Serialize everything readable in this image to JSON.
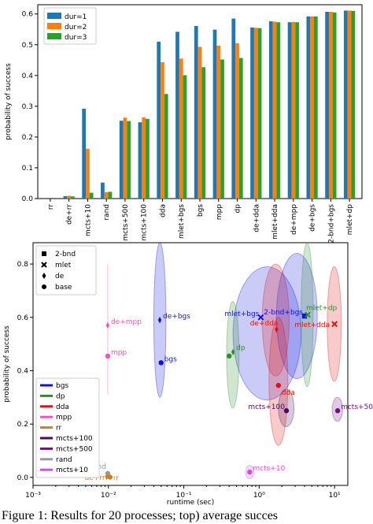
{
  "chart_data": [
    {
      "type": "bar",
      "ylabel": "probability of success",
      "ylim": [
        0,
        0.63
      ],
      "yticks": [
        "0.0",
        "0.1",
        "0.2",
        "0.3",
        "0.4",
        "0.5",
        "0.6"
      ],
      "categories": [
        "rr",
        "de+rr",
        "mcts+10",
        "rand",
        "mcts+500",
        "mcts+100",
        "dda",
        "mlet+bgs",
        "bgs",
        "mpp",
        "dp",
        "de+dda",
        "mlet+dda",
        "de+mpp",
        "de+bgs",
        "2-bnd+bgs",
        "mlet+dp"
      ],
      "series": [
        {
          "name": "dur=1",
          "color": "#1f77b4",
          "values": [
            0.0,
            0.008,
            0.292,
            0.052,
            0.253,
            0.248,
            0.51,
            0.542,
            0.561,
            0.549,
            0.585,
            0.556,
            0.576,
            0.573,
            0.592,
            0.607,
            0.611
          ]
        },
        {
          "name": "dur=2",
          "color": "#ff7f0e",
          "values": [
            0.0,
            0.009,
            0.162,
            0.021,
            0.263,
            0.264,
            0.443,
            0.455,
            0.493,
            0.497,
            0.505,
            0.555,
            0.575,
            0.574,
            0.592,
            0.607,
            0.611
          ]
        },
        {
          "name": "dur=3",
          "color": "#2ca02c",
          "values": [
            0.0,
            0.007,
            0.019,
            0.022,
            0.252,
            0.259,
            0.34,
            0.401,
            0.427,
            0.452,
            0.457,
            0.554,
            0.573,
            0.573,
            0.592,
            0.605,
            0.61
          ]
        }
      ],
      "legend": "top-left"
    },
    {
      "type": "scatter",
      "xlabel": "runtime (sec)",
      "ylabel": "probability of success",
      "xscale": "log",
      "xlim": [
        0.001,
        15
      ],
      "ylim": [
        -0.03,
        0.88
      ],
      "xticks": [
        0.001,
        0.01,
        0.1,
        1,
        10
      ],
      "xtick_labels": [
        "10⁻³",
        "10⁻²",
        "10⁻¹",
        "10⁰",
        "10¹"
      ],
      "yticks": [
        "0.0",
        "0.2",
        "0.4",
        "0.6",
        "0.8"
      ],
      "ytick_values": [
        0,
        0.2,
        0.4,
        0.6,
        0.8
      ],
      "marker_legend": [
        {
          "marker": "square",
          "label": "2-bnd"
        },
        {
          "marker": "x",
          "label": "mlet"
        },
        {
          "marker": "diamond",
          "label": "de"
        },
        {
          "marker": "circle",
          "label": "base"
        }
      ],
      "color_legend": [
        {
          "label": "bgs",
          "color": "#1010e0"
        },
        {
          "label": "dp",
          "color": "#2e8b2e"
        },
        {
          "label": "dda",
          "color": "#e01010"
        },
        {
          "label": "mpp",
          "color": "#ff4fb8"
        },
        {
          "label": "rr",
          "color": "#c87f2a"
        },
        {
          "label": "mcts+100",
          "color": "#4b0a5a"
        },
        {
          "label": "mcts+500",
          "color": "#70107a"
        },
        {
          "label": "rand",
          "color": "#999999"
        },
        {
          "label": "mcts+10",
          "color": "#d050e0"
        }
      ],
      "points": [
        {
          "label": "de+bgs",
          "x": 0.048,
          "y": 0.59,
          "color": "#1010e0",
          "marker": "diamond",
          "ex": [
            0.04,
            0.058
          ],
          "ey": [
            0.3,
            0.88
          ]
        },
        {
          "label": "bgs",
          "x": 0.05,
          "y": 0.43,
          "color": "#1010e0",
          "marker": "circle"
        },
        {
          "label": "de+mpp",
          "x": 0.0098,
          "y": 0.57,
          "color": "#ff4fb8",
          "marker": "diamond",
          "ey": [
            0.31,
            0.8
          ]
        },
        {
          "label": "mpp",
          "x": 0.0098,
          "y": 0.455,
          "color": "#ff4fb8",
          "marker": "circle"
        },
        {
          "label": "mlet+bgs",
          "x": 1.05,
          "y": 0.6,
          "color": "#1010e0",
          "marker": "x",
          "ex": [
            0.45,
            3.6
          ],
          "ey": [
            0.29,
            0.79
          ]
        },
        {
          "label": "2-bnd+bgs",
          "x": 4.0,
          "y": 0.605,
          "color": "#1010e0",
          "marker": "square",
          "ex": [
            1.7,
            5.9
          ],
          "ey": [
            0.37,
            0.84
          ]
        },
        {
          "label": "mlet+dp",
          "x": 4.4,
          "y": 0.61,
          "color": "#2e8b2e",
          "marker": "x",
          "ex": [
            3.6,
            5.2
          ],
          "ey": [
            0.34,
            0.88
          ]
        },
        {
          "label": "de+dda",
          "x": 1.7,
          "y": 0.555,
          "color": "#e01010",
          "marker": "diamond",
          "ex": [
            1.1,
            2.5
          ],
          "ey": [
            0.38,
            0.8
          ]
        },
        {
          "label": "mlet+dda",
          "x": 10.0,
          "y": 0.575,
          "color": "#e01010",
          "marker": "x",
          "ex": [
            8.0,
            12.3
          ],
          "ey": [
            0.36,
            0.79
          ]
        },
        {
          "label": "dp",
          "x": 0.45,
          "y": 0.47,
          "color": "#2e8b2e",
          "marker": "diamond",
          "ex": [
            0.37,
            0.54
          ],
          "ey": [
            0.26,
            0.66
          ]
        },
        {
          "label": "dp",
          "x": 0.4,
          "y": 0.455,
          "color": "#2e8b2e",
          "marker": "circle"
        },
        {
          "label": "dda",
          "x": 1.8,
          "y": 0.345,
          "color": "#e01010",
          "marker": "circle",
          "ex": [
            1.35,
            2.4
          ],
          "ey": [
            0.12,
            0.6
          ]
        },
        {
          "label": "mcts+100",
          "x": 2.3,
          "y": 0.25,
          "color": "#4b0a5a",
          "marker": "circle",
          "ex": [
            1.8,
            2.9
          ],
          "ey": [
            0.19,
            0.33
          ]
        },
        {
          "label": "mcts+500",
          "x": 11.0,
          "y": 0.25,
          "color": "#70107a",
          "marker": "circle",
          "ex": [
            9.3,
            12.8
          ],
          "ey": [
            0.21,
            0.3
          ]
        },
        {
          "label": "mcts+10",
          "x": 0.75,
          "y": 0.02,
          "color": "#d050e0",
          "marker": "circle",
          "ex": [
            0.66,
            0.85
          ],
          "ey": [
            -0.005,
            0.045
          ]
        },
        {
          "label": "rand",
          "x": 0.0098,
          "y": 0.015,
          "color": "#999999",
          "marker": "circle"
        },
        {
          "label": "de+rr",
          "x": 0.0095,
          "y": 0.002,
          "color": "#c87f2a",
          "marker": "diamond"
        },
        {
          "label": "rr",
          "x": 0.0105,
          "y": 0.001,
          "color": "#c87f2a",
          "marker": "circle"
        }
      ]
    }
  ],
  "caption": "Figure 1:  Results for 20 processes; top) average succes"
}
